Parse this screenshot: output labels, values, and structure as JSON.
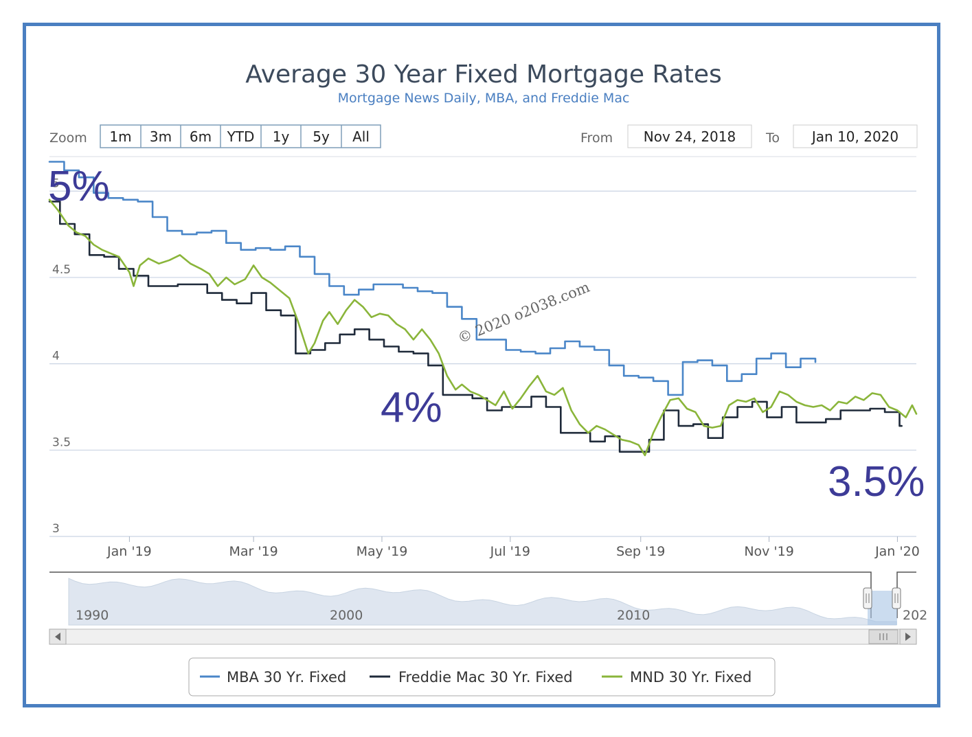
{
  "watermark": "© 2020 o2038.com",
  "range_selector": {
    "zoom_label": "Zoom",
    "buttons": [
      "1m",
      "3m",
      "6m",
      "YTD",
      "1y",
      "5y",
      "All"
    ],
    "from_label": "From",
    "from_value": "Nov 24, 2018",
    "to_label": "To",
    "to_value": "Jan 10, 2020"
  },
  "annotations": [
    {
      "text": "5%"
    },
    {
      "text": "4%"
    },
    {
      "text": "3.5%"
    }
  ],
  "navigator": {
    "years": [
      "1990",
      "2000",
      "2010",
      "202"
    ]
  },
  "colors": {
    "frame": "#4a7fc1",
    "mba": "#4a86c8",
    "freddie": "#1f2a3a",
    "mnd": "#8ab53a",
    "annotation": "#3d3b97"
  },
  "chart_data": {
    "type": "line",
    "title": "Average 30 Year Fixed Mortgage Rates",
    "subtitle": "Mortgage News Daily, MBA, and Freddie Mac",
    "x_type": "datetime",
    "x_range": [
      "2018-11-24",
      "2020-01-10"
    ],
    "ylim": [
      3,
      5.2
    ],
    "y_ticks": [
      "3",
      "3.5",
      "4",
      "4.5",
      "5"
    ],
    "x_ticks": [
      {
        "date": "2019-01-01",
        "label": "Jan '19"
      },
      {
        "date": "2019-03-01",
        "label": "Mar '19"
      },
      {
        "date": "2019-05-01",
        "label": "May '19"
      },
      {
        "date": "2019-07-01",
        "label": "Jul '19"
      },
      {
        "date": "2019-09-01",
        "label": "Sep '19"
      },
      {
        "date": "2019-11-01",
        "label": "Nov '19"
      },
      {
        "date": "2020-01-01",
        "label": "Jan '20"
      }
    ],
    "grid": true,
    "legend_position": "bottom",
    "series": [
      {
        "name": "MBA 30 Yr. Fixed",
        "color": "#4a86c8",
        "step": true,
        "points": [
          [
            "2018-11-24",
            5.17
          ],
          [
            "2018-12-01",
            5.12
          ],
          [
            "2018-12-08",
            5.08
          ],
          [
            "2018-12-15",
            4.99
          ],
          [
            "2018-12-22",
            4.96
          ],
          [
            "2018-12-29",
            4.95
          ],
          [
            "2019-01-05",
            4.94
          ],
          [
            "2019-01-12",
            4.85
          ],
          [
            "2019-01-19",
            4.77
          ],
          [
            "2019-01-26",
            4.75
          ],
          [
            "2019-02-02",
            4.76
          ],
          [
            "2019-02-09",
            4.77
          ],
          [
            "2019-02-16",
            4.7
          ],
          [
            "2019-02-23",
            4.66
          ],
          [
            "2019-03-02",
            4.67
          ],
          [
            "2019-03-09",
            4.66
          ],
          [
            "2019-03-16",
            4.68
          ],
          [
            "2019-03-23",
            4.62
          ],
          [
            "2019-03-30",
            4.52
          ],
          [
            "2019-04-06",
            4.45
          ],
          [
            "2019-04-13",
            4.4
          ],
          [
            "2019-04-20",
            4.43
          ],
          [
            "2019-04-27",
            4.46
          ],
          [
            "2019-05-04",
            4.46
          ],
          [
            "2019-05-11",
            4.44
          ],
          [
            "2019-05-18",
            4.42
          ],
          [
            "2019-05-25",
            4.41
          ],
          [
            "2019-06-01",
            4.33
          ],
          [
            "2019-06-08",
            4.26
          ],
          [
            "2019-06-15",
            4.14
          ],
          [
            "2019-06-22",
            4.14
          ],
          [
            "2019-06-29",
            4.08
          ],
          [
            "2019-07-06",
            4.07
          ],
          [
            "2019-07-13",
            4.06
          ],
          [
            "2019-07-20",
            4.09
          ],
          [
            "2019-07-27",
            4.13
          ],
          [
            "2019-08-03",
            4.1
          ],
          [
            "2019-08-10",
            4.08
          ],
          [
            "2019-08-17",
            3.99
          ],
          [
            "2019-08-24",
            3.93
          ],
          [
            "2019-08-31",
            3.92
          ],
          [
            "2019-09-07",
            3.9
          ],
          [
            "2019-09-14",
            3.82
          ],
          [
            "2019-09-21",
            4.01
          ],
          [
            "2019-09-28",
            4.02
          ],
          [
            "2019-10-05",
            3.99
          ],
          [
            "2019-10-12",
            3.9
          ],
          [
            "2019-10-19",
            3.94
          ],
          [
            "2019-10-26",
            4.03
          ],
          [
            "2019-11-02",
            4.06
          ],
          [
            "2019-11-09",
            3.98
          ],
          [
            "2019-11-16",
            4.03
          ],
          [
            "2019-11-23",
            4.01
          ]
        ]
      },
      {
        "name": "Freddie Mac 30 Yr. Fixed",
        "color": "#1f2a3a",
        "step": true,
        "points": [
          [
            "2018-11-24",
            4.94
          ],
          [
            "2018-11-29",
            4.81
          ],
          [
            "2018-12-06",
            4.75
          ],
          [
            "2018-12-13",
            4.63
          ],
          [
            "2018-12-20",
            4.62
          ],
          [
            "2018-12-27",
            4.55
          ],
          [
            "2019-01-03",
            4.51
          ],
          [
            "2019-01-10",
            4.45
          ],
          [
            "2019-01-17",
            4.45
          ],
          [
            "2019-01-24",
            4.46
          ],
          [
            "2019-01-31",
            4.46
          ],
          [
            "2019-02-07",
            4.41
          ],
          [
            "2019-02-14",
            4.37
          ],
          [
            "2019-02-21",
            4.35
          ],
          [
            "2019-02-28",
            4.41
          ],
          [
            "2019-03-07",
            4.31
          ],
          [
            "2019-03-14",
            4.28
          ],
          [
            "2019-03-21",
            4.06
          ],
          [
            "2019-03-28",
            4.08
          ],
          [
            "2019-04-04",
            4.12
          ],
          [
            "2019-04-11",
            4.17
          ],
          [
            "2019-04-18",
            4.2
          ],
          [
            "2019-04-25",
            4.14
          ],
          [
            "2019-05-02",
            4.1
          ],
          [
            "2019-05-09",
            4.07
          ],
          [
            "2019-05-16",
            4.06
          ],
          [
            "2019-05-23",
            3.99
          ],
          [
            "2019-05-30",
            3.82
          ],
          [
            "2019-06-06",
            3.82
          ],
          [
            "2019-06-13",
            3.8
          ],
          [
            "2019-06-20",
            3.73
          ],
          [
            "2019-06-27",
            3.75
          ],
          [
            "2019-07-04",
            3.75
          ],
          [
            "2019-07-11",
            3.81
          ],
          [
            "2019-07-18",
            3.75
          ],
          [
            "2019-07-25",
            3.6
          ],
          [
            "2019-08-01",
            3.6
          ],
          [
            "2019-08-08",
            3.55
          ],
          [
            "2019-08-15",
            3.58
          ],
          [
            "2019-08-22",
            3.49
          ],
          [
            "2019-08-29",
            3.49
          ],
          [
            "2019-09-05",
            3.56
          ],
          [
            "2019-09-12",
            3.73
          ],
          [
            "2019-09-19",
            3.64
          ],
          [
            "2019-09-26",
            3.65
          ],
          [
            "2019-10-03",
            3.57
          ],
          [
            "2019-10-10",
            3.69
          ],
          [
            "2019-10-17",
            3.75
          ],
          [
            "2019-10-24",
            3.78
          ],
          [
            "2019-10-31",
            3.69
          ],
          [
            "2019-11-07",
            3.75
          ],
          [
            "2019-11-14",
            3.66
          ],
          [
            "2019-11-21",
            3.66
          ],
          [
            "2019-11-28",
            3.68
          ],
          [
            "2019-12-05",
            3.73
          ],
          [
            "2019-12-12",
            3.73
          ],
          [
            "2019-12-19",
            3.74
          ],
          [
            "2019-12-26",
            3.72
          ],
          [
            "2020-01-02",
            3.64
          ]
        ]
      },
      {
        "name": "MND 30 Yr. Fixed",
        "color": "#8ab53a",
        "step": false,
        "points": [
          [
            "2018-11-24",
            4.95
          ],
          [
            "2018-11-28",
            4.89
          ],
          [
            "2018-12-03",
            4.8
          ],
          [
            "2018-12-07",
            4.76
          ],
          [
            "2018-12-11",
            4.74
          ],
          [
            "2018-12-15",
            4.69
          ],
          [
            "2018-12-19",
            4.66
          ],
          [
            "2018-12-23",
            4.64
          ],
          [
            "2018-12-27",
            4.62
          ],
          [
            "2019-01-01",
            4.53
          ],
          [
            "2019-01-03",
            4.45
          ],
          [
            "2019-01-06",
            4.57
          ],
          [
            "2019-01-10",
            4.61
          ],
          [
            "2019-01-15",
            4.58
          ],
          [
            "2019-01-20",
            4.6
          ],
          [
            "2019-01-25",
            4.63
          ],
          [
            "2019-01-30",
            4.58
          ],
          [
            "2019-02-04",
            4.55
          ],
          [
            "2019-02-08",
            4.52
          ],
          [
            "2019-02-12",
            4.45
          ],
          [
            "2019-02-16",
            4.5
          ],
          [
            "2019-02-20",
            4.46
          ],
          [
            "2019-02-25",
            4.49
          ],
          [
            "2019-03-01",
            4.57
          ],
          [
            "2019-03-05",
            4.5
          ],
          [
            "2019-03-09",
            4.47
          ],
          [
            "2019-03-13",
            4.43
          ],
          [
            "2019-03-18",
            4.38
          ],
          [
            "2019-03-22",
            4.25
          ],
          [
            "2019-03-27",
            4.06
          ],
          [
            "2019-03-30",
            4.12
          ],
          [
            "2019-04-03",
            4.25
          ],
          [
            "2019-04-06",
            4.3
          ],
          [
            "2019-04-10",
            4.23
          ],
          [
            "2019-04-14",
            4.31
          ],
          [
            "2019-04-18",
            4.37
          ],
          [
            "2019-04-22",
            4.33
          ],
          [
            "2019-04-26",
            4.27
          ],
          [
            "2019-04-30",
            4.29
          ],
          [
            "2019-05-04",
            4.28
          ],
          [
            "2019-05-08",
            4.23
          ],
          [
            "2019-05-12",
            4.2
          ],
          [
            "2019-05-16",
            4.14
          ],
          [
            "2019-05-20",
            4.2
          ],
          [
            "2019-05-24",
            4.14
          ],
          [
            "2019-05-28",
            4.06
          ],
          [
            "2019-06-01",
            3.93
          ],
          [
            "2019-06-05",
            3.85
          ],
          [
            "2019-06-08",
            3.88
          ],
          [
            "2019-06-12",
            3.84
          ],
          [
            "2019-06-16",
            3.82
          ],
          [
            "2019-06-20",
            3.79
          ],
          [
            "2019-06-24",
            3.76
          ],
          [
            "2019-06-28",
            3.84
          ],
          [
            "2019-07-02",
            3.74
          ],
          [
            "2019-07-06",
            3.8
          ],
          [
            "2019-07-10",
            3.87
          ],
          [
            "2019-07-14",
            3.93
          ],
          [
            "2019-07-18",
            3.84
          ],
          [
            "2019-07-22",
            3.82
          ],
          [
            "2019-07-26",
            3.86
          ],
          [
            "2019-07-30",
            3.73
          ],
          [
            "2019-08-03",
            3.65
          ],
          [
            "2019-08-07",
            3.6
          ],
          [
            "2019-08-11",
            3.64
          ],
          [
            "2019-08-15",
            3.62
          ],
          [
            "2019-08-19",
            3.59
          ],
          [
            "2019-08-23",
            3.56
          ],
          [
            "2019-08-27",
            3.55
          ],
          [
            "2019-08-31",
            3.53
          ],
          [
            "2019-09-03",
            3.47
          ],
          [
            "2019-09-07",
            3.6
          ],
          [
            "2019-09-11",
            3.7
          ],
          [
            "2019-09-15",
            3.79
          ],
          [
            "2019-09-19",
            3.8
          ],
          [
            "2019-09-23",
            3.74
          ],
          [
            "2019-09-27",
            3.72
          ],
          [
            "2019-10-01",
            3.64
          ],
          [
            "2019-10-05",
            3.63
          ],
          [
            "2019-10-09",
            3.64
          ],
          [
            "2019-10-13",
            3.76
          ],
          [
            "2019-10-17",
            3.79
          ],
          [
            "2019-10-21",
            3.78
          ],
          [
            "2019-10-25",
            3.8
          ],
          [
            "2019-10-29",
            3.72
          ],
          [
            "2019-11-02",
            3.75
          ],
          [
            "2019-11-06",
            3.84
          ],
          [
            "2019-11-10",
            3.82
          ],
          [
            "2019-11-14",
            3.78
          ],
          [
            "2019-11-18",
            3.76
          ],
          [
            "2019-11-22",
            3.75
          ],
          [
            "2019-11-26",
            3.76
          ],
          [
            "2019-11-30",
            3.73
          ],
          [
            "2019-12-04",
            3.78
          ],
          [
            "2019-12-08",
            3.77
          ],
          [
            "2019-12-12",
            3.81
          ],
          [
            "2019-12-16",
            3.79
          ],
          [
            "2019-12-20",
            3.83
          ],
          [
            "2019-12-24",
            3.82
          ],
          [
            "2019-12-28",
            3.75
          ],
          [
            "2020-01-01",
            3.73
          ],
          [
            "2020-01-05",
            3.69
          ],
          [
            "2020-01-08",
            3.76
          ],
          [
            "2020-01-10",
            3.71
          ]
        ]
      }
    ]
  }
}
